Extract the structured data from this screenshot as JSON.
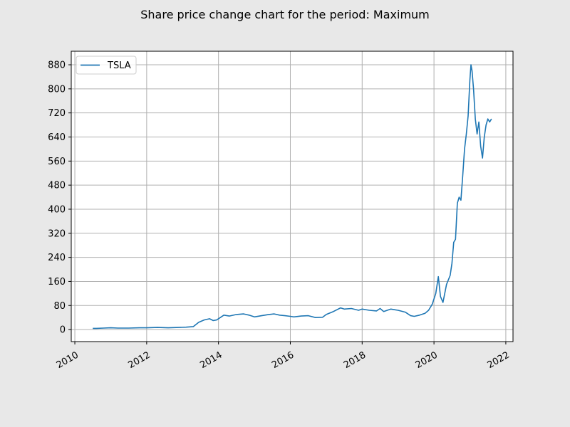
{
  "chart_data": {
    "type": "line",
    "title": "Share price change chart for the period: Maximum",
    "xlabel": "",
    "ylabel": "",
    "xlim": [
      2009.9,
      2022.2
    ],
    "ylim": [
      -40,
      925
    ],
    "x_ticks": [
      "2010",
      "2012",
      "2014",
      "2016",
      "2018",
      "2020",
      "2022"
    ],
    "y_ticks": [
      0,
      80,
      160,
      240,
      320,
      400,
      480,
      560,
      640,
      720,
      800,
      880
    ],
    "grid": true,
    "legend": "top-left",
    "series": [
      {
        "name": "TSLA",
        "color": "#1f77b4",
        "x": [
          2010.5,
          2010.6,
          2010.8,
          2011.0,
          2011.2,
          2011.5,
          2011.8,
          2012.0,
          2012.3,
          2012.6,
          2012.9,
          2013.1,
          2013.3,
          2013.45,
          2013.6,
          2013.75,
          2013.85,
          2013.95,
          2014.05,
          2014.15,
          2014.3,
          2014.5,
          2014.7,
          2014.85,
          2015.0,
          2015.2,
          2015.4,
          2015.55,
          2015.7,
          2015.85,
          2016.0,
          2016.1,
          2016.3,
          2016.5,
          2016.7,
          2016.9,
          2017.0,
          2017.2,
          2017.4,
          2017.5,
          2017.7,
          2017.9,
          2018.0,
          2018.2,
          2018.4,
          2018.5,
          2018.6,
          2018.8,
          2018.9,
          2019.0,
          2019.2,
          2019.35,
          2019.45,
          2019.6,
          2019.75,
          2019.85,
          2019.95,
          2020.05,
          2020.12,
          2020.18,
          2020.25,
          2020.35,
          2020.45,
          2020.5,
          2020.55,
          2020.6,
          2020.65,
          2020.7,
          2020.75,
          2020.8,
          2020.85,
          2020.9,
          2020.95,
          2021.0,
          2021.03,
          2021.06,
          2021.1,
          2021.15,
          2021.2,
          2021.25,
          2021.3,
          2021.35,
          2021.4,
          2021.45,
          2021.5,
          2021.55,
          2021.6
        ],
        "y": [
          4,
          4,
          5,
          6,
          5,
          5,
          6,
          6,
          7,
          6,
          7,
          8,
          10,
          24,
          32,
          36,
          30,
          32,
          40,
          48,
          45,
          50,
          52,
          48,
          42,
          46,
          50,
          52,
          48,
          46,
          44,
          42,
          45,
          46,
          40,
          41,
          50,
          60,
          72,
          68,
          70,
          64,
          68,
          64,
          62,
          70,
          60,
          68,
          66,
          64,
          58,
          46,
          44,
          48,
          54,
          64,
          84,
          120,
          176,
          110,
          90,
          150,
          180,
          220,
          290,
          300,
          420,
          440,
          430,
          510,
          600,
          650,
          710,
          830,
          880,
          860,
          800,
          700,
          650,
          690,
          610,
          570,
          640,
          680,
          700,
          690,
          700
        ]
      }
    ]
  }
}
